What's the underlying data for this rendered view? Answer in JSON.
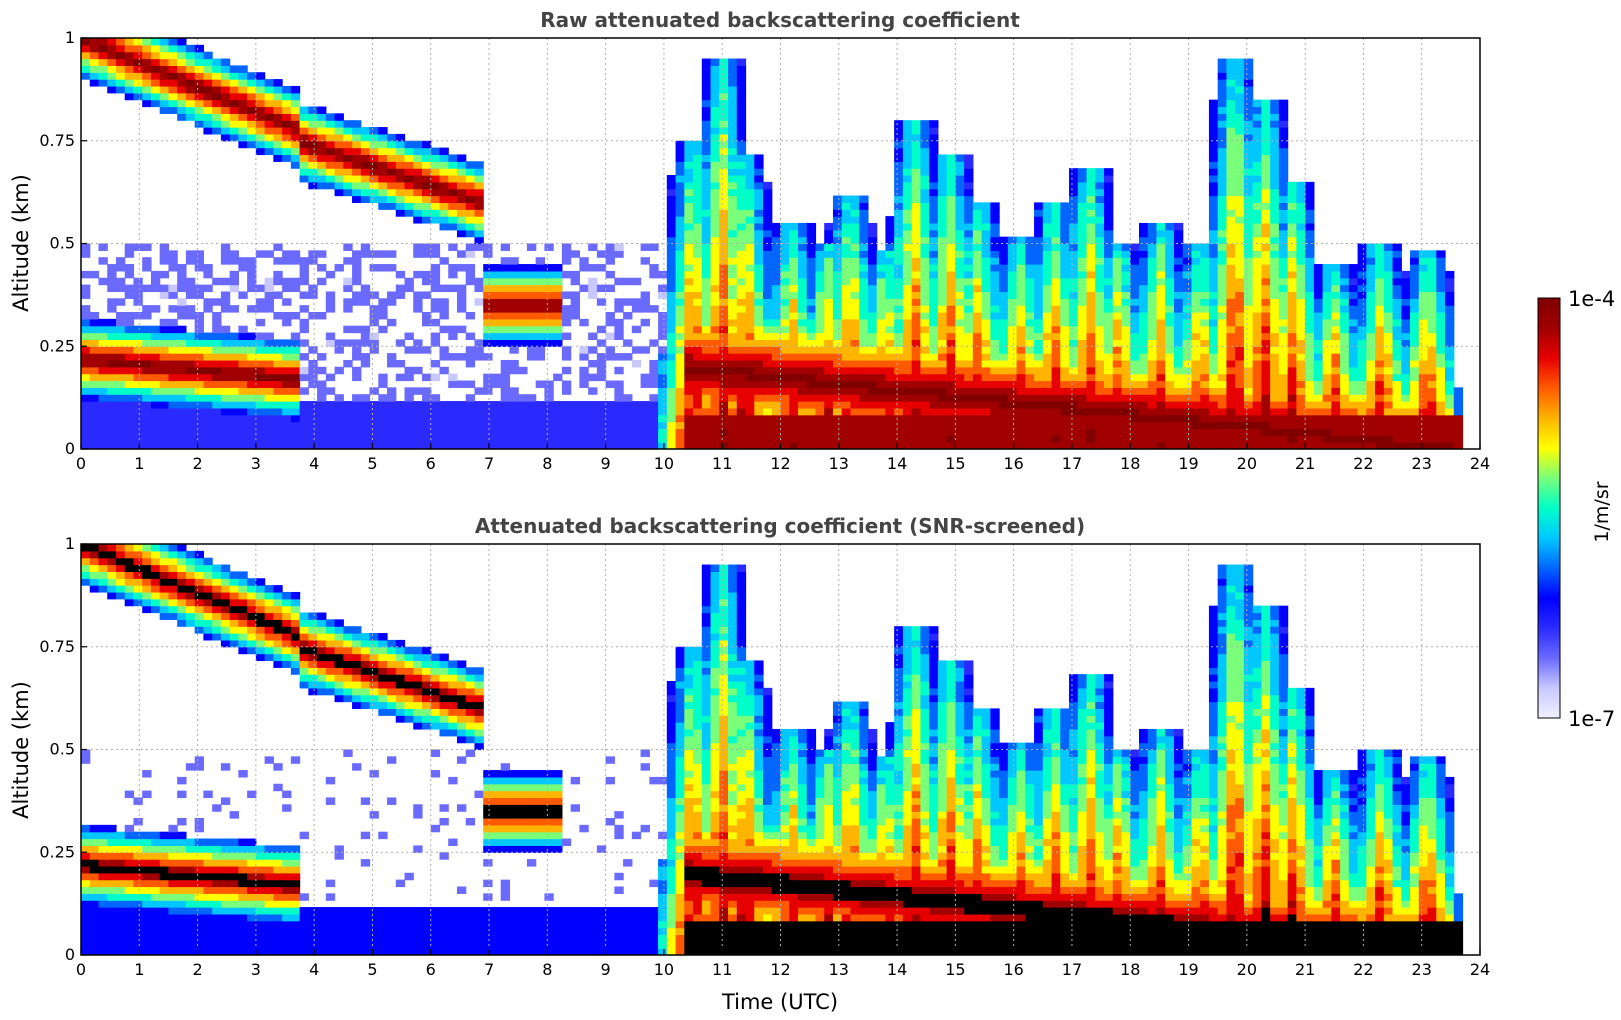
{
  "chart_data": [
    {
      "type": "heatmap",
      "title": "Raw attenuated backscattering coefficient",
      "ylabel": "Altitude (km)",
      "xlabel": "",
      "xlim": [
        0,
        24
      ],
      "ylim": [
        0,
        1
      ],
      "x_ticks": [
        "0",
        "1",
        "2",
        "3",
        "4",
        "5",
        "6",
        "7",
        "8",
        "9",
        "10",
        "11",
        "12",
        "13",
        "14",
        "15",
        "16",
        "17",
        "18",
        "19",
        "20",
        "21",
        "22",
        "23",
        "24"
      ],
      "y_ticks": [
        "0",
        "0.25",
        "0.5",
        "0.75",
        "1"
      ],
      "grid": true,
      "variant": "raw",
      "layers": [
        {
          "t": [
            0,
            3.7
          ],
          "z": [
            1.0,
            0.78
          ],
          "note": "descending layer"
        },
        {
          "t": [
            3.7,
            6.9
          ],
          "z": [
            0.75,
            0.6
          ],
          "note": "mid layer"
        },
        {
          "t": [
            0,
            3.7
          ],
          "z": [
            0.22,
            0.17
          ],
          "note": "low layer"
        },
        {
          "t": [
            6.9,
            8.2
          ],
          "z": [
            0.35,
            0.35
          ],
          "note": "low layer"
        },
        {
          "t": [
            10.3,
            23.6
          ],
          "z": [
            0.2,
            0.0
          ],
          "note": "dense base"
        }
      ],
      "convection": [
        [
          10.5,
          0.75
        ],
        [
          11,
          0.95
        ],
        [
          11.4,
          0.72
        ],
        [
          12.2,
          0.55
        ],
        [
          12.8,
          0.5
        ],
        [
          13.2,
          0.62
        ],
        [
          13.8,
          0.48
        ],
        [
          14.3,
          0.8
        ],
        [
          14.9,
          0.72
        ],
        [
          15.4,
          0.6
        ],
        [
          16.1,
          0.52
        ],
        [
          16.7,
          0.6
        ],
        [
          17.3,
          0.68
        ],
        [
          17.8,
          0.5
        ],
        [
          18.5,
          0.55
        ],
        [
          19.2,
          0.5
        ],
        [
          19.8,
          0.95
        ],
        [
          20.3,
          0.85
        ],
        [
          20.8,
          0.65
        ],
        [
          21.5,
          0.45
        ],
        [
          22.3,
          0.5
        ],
        [
          23.1,
          0.48
        ]
      ]
    },
    {
      "type": "heatmap",
      "title": "Attenuated backscattering coefficient (SNR-screened)",
      "ylabel": "Altitude (km)",
      "xlabel": "Time (UTC)",
      "xlim": [
        0,
        24
      ],
      "ylim": [
        0,
        1
      ],
      "x_ticks": [
        "0",
        "1",
        "2",
        "3",
        "4",
        "5",
        "6",
        "7",
        "8",
        "9",
        "10",
        "11",
        "12",
        "13",
        "14",
        "15",
        "16",
        "17",
        "18",
        "19",
        "20",
        "21",
        "22",
        "23",
        "24"
      ],
      "y_ticks": [
        "0",
        "0.25",
        "0.5",
        "0.75",
        "1"
      ],
      "grid": true,
      "variant": "screened"
    }
  ],
  "colorbar": {
    "label": "1/m/sr",
    "max_label": "1e-4",
    "min_label": "1e-7",
    "colors": [
      "#f0f0ff",
      "#c8c8ff",
      "#6a6aff",
      "#2a2aff",
      "#0000ff",
      "#0066ff",
      "#00c8ff",
      "#00ffc8",
      "#7aff7a",
      "#ffff00",
      "#ffb400",
      "#ff5a00",
      "#e60000",
      "#a00000",
      "#800000"
    ]
  }
}
